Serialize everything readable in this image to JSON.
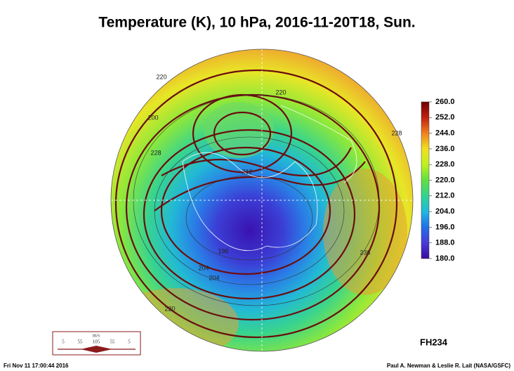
{
  "title": "Temperature (K), 10 hPa, 2016-11-20T18, Sun.",
  "colorbar": {
    "range": [
      180,
      260
    ],
    "ticks": [
      {
        "value": 180,
        "label": "180.0"
      },
      {
        "value": 188,
        "label": "188.0"
      },
      {
        "value": 196,
        "label": "196.0"
      },
      {
        "value": 204,
        "label": "204.0"
      },
      {
        "value": 212,
        "label": "212.0"
      },
      {
        "value": 220,
        "label": "220.0"
      },
      {
        "value": 228,
        "label": "228.0"
      },
      {
        "value": 236,
        "label": "236.0"
      },
      {
        "value": 244,
        "label": "244.0"
      },
      {
        "value": 252,
        "label": "252.0"
      },
      {
        "value": 260,
        "label": "260.0"
      }
    ]
  },
  "contour_labels": [
    "220",
    "200",
    "228",
    "220",
    "212",
    "196",
    "204",
    "236",
    "228",
    "204",
    "220"
  ],
  "forecast_hour": "FH234",
  "wind_legend": {
    "unit": "m/s",
    "labels": [
      "5",
      "55",
      "105",
      "55",
      "5"
    ]
  },
  "footer": {
    "left": "Fri Nov 11 17:00:44 2016",
    "right": "Paul A. Newman & Leslie R. Lait (NASA/GSFC)"
  }
}
